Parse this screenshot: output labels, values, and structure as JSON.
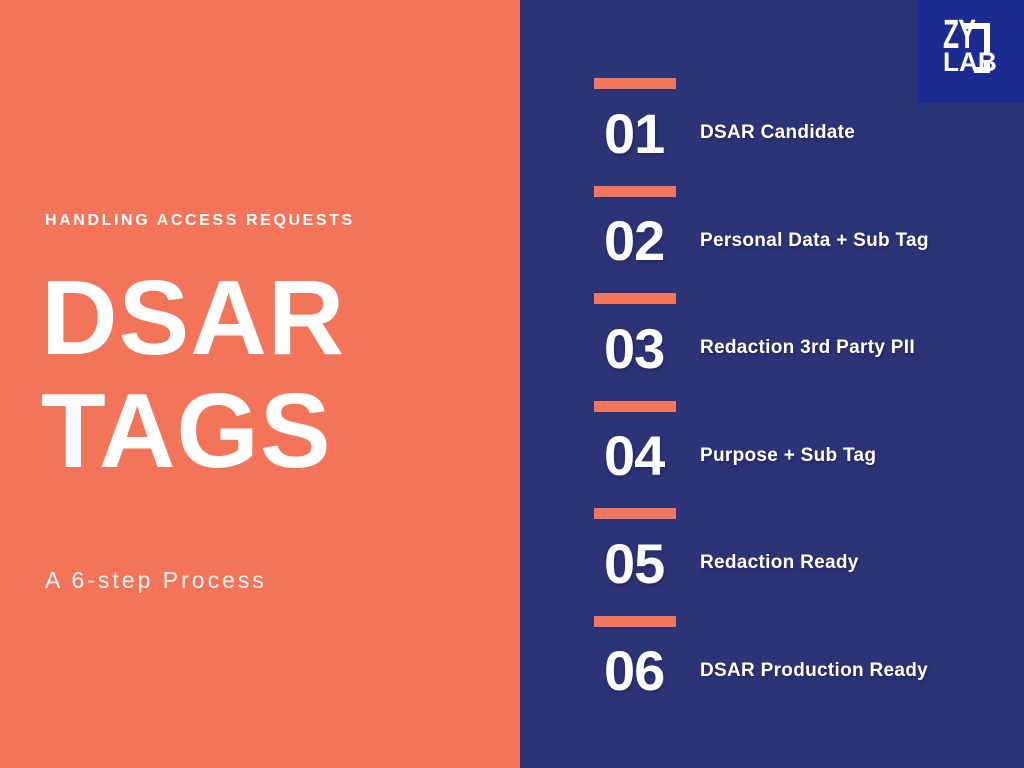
{
  "left_panel": {
    "kicker": "HANDLING ACCESS REQUESTS",
    "title_line1": "DSAR",
    "title_line2": "TAGS",
    "subtitle": "A 6-step Process"
  },
  "logo": {
    "line1": "ZY",
    "line2": "LAB"
  },
  "steps": [
    {
      "number": "01",
      "label": "DSAR Candidate"
    },
    {
      "number": "02",
      "label": "Personal Data + Sub Tag"
    },
    {
      "number": "03",
      "label": "Redaction 3rd Party PII"
    },
    {
      "number": "04",
      "label": "Purpose + Sub Tag"
    },
    {
      "number": "05",
      "label": "Redaction Ready"
    },
    {
      "number": "06",
      "label": "DSAR Production Ready"
    }
  ],
  "colors": {
    "coral": "#F37458",
    "coral_bar": "#F3755C",
    "navy": "#2D3377",
    "logo_blue": "#1C2B8F",
    "white": "#FFFFFF"
  }
}
